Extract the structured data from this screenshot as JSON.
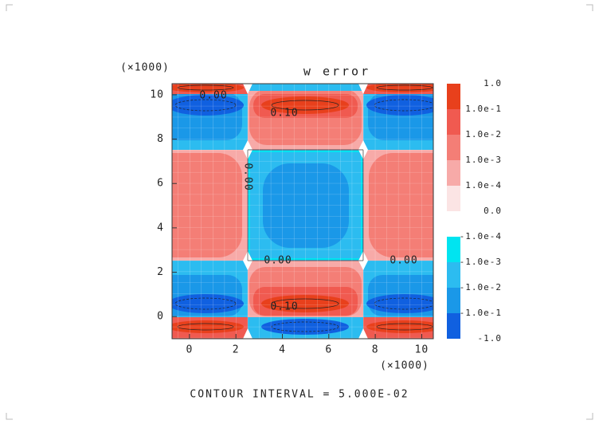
{
  "chart_data": {
    "type": "contour",
    "title": "w error",
    "x_multiplier": "(×1000)",
    "y_multiplier": "(×1000)",
    "xlim": [
      -0.75,
      10.5
    ],
    "ylim": [
      -1,
      10.5
    ],
    "xticks": [
      0,
      2,
      4,
      6,
      8,
      10
    ],
    "yticks": [
      0,
      2,
      4,
      6,
      8,
      10
    ],
    "contour_labels": [
      "0.00",
      "0.10",
      "0.00",
      "0.00",
      "0.00",
      "0.10"
    ],
    "colorbar": {
      "levels": [
        {
          "value": 1,
          "label": "1.0"
        },
        {
          "value": 0.1,
          "label": "1.0e-1"
        },
        {
          "value": 0.01,
          "label": "1.0e-2"
        },
        {
          "value": 0.001,
          "label": "1.0e-3"
        },
        {
          "value": 0.0001,
          "label": "1.0e-4"
        },
        {
          "value": 0,
          "label": "0.0"
        },
        {
          "value": -0.0001,
          "label": "-1.0e-4"
        },
        {
          "value": -0.001,
          "label": "-1.0e-3"
        },
        {
          "value": -0.01,
          "label": "-1.0e-2"
        },
        {
          "value": -0.1,
          "label": "-1.0e-1"
        },
        {
          "value": -1,
          "label": "-1.0"
        }
      ],
      "colors": [
        "#e8401c",
        "#f05a50",
        "#f47e76",
        "#f7aaa8",
        "#fbe4e4",
        "#ffffff",
        "#00e4f0",
        "#2cbcf0",
        "#1a98e8",
        "#1060e0"
      ]
    },
    "footer": "CONTOUR INTERVAL = 5.000E-02"
  }
}
